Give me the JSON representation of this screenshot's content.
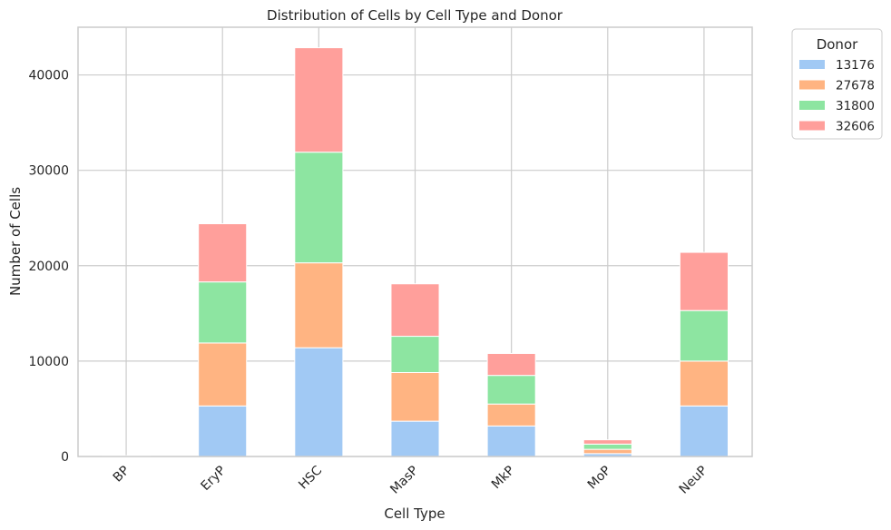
{
  "chart_data": {
    "type": "bar",
    "stacked": true,
    "title": "Distribution of Cells by Cell Type and Donor",
    "xlabel": "Cell Type",
    "ylabel": "Number of Cells",
    "categories": [
      "BP",
      "EryP",
      "HSC",
      "MasP",
      "MkP",
      "MoP",
      "NeuP"
    ],
    "ylim": [
      0,
      45000
    ],
    "yticks": [
      0,
      10000,
      20000,
      30000,
      40000
    ],
    "grid": true,
    "legend": {
      "title": "Donor",
      "placement": "outside-top-right"
    },
    "series": [
      {
        "name": "13176",
        "color": "#a1c9f4",
        "values": [
          30,
          5300,
          11400,
          3700,
          3200,
          300,
          5300
        ]
      },
      {
        "name": "27678",
        "color": "#ffb482",
        "values": [
          20,
          6600,
          8900,
          5100,
          2300,
          450,
          4700
        ]
      },
      {
        "name": "31800",
        "color": "#8de5a1",
        "values": [
          20,
          6400,
          11600,
          3800,
          3000,
          550,
          5300
        ]
      },
      {
        "name": "32606",
        "color": "#ff9f9b",
        "values": [
          20,
          6100,
          10950,
          5500,
          2300,
          450,
          6100
        ]
      }
    ]
  }
}
